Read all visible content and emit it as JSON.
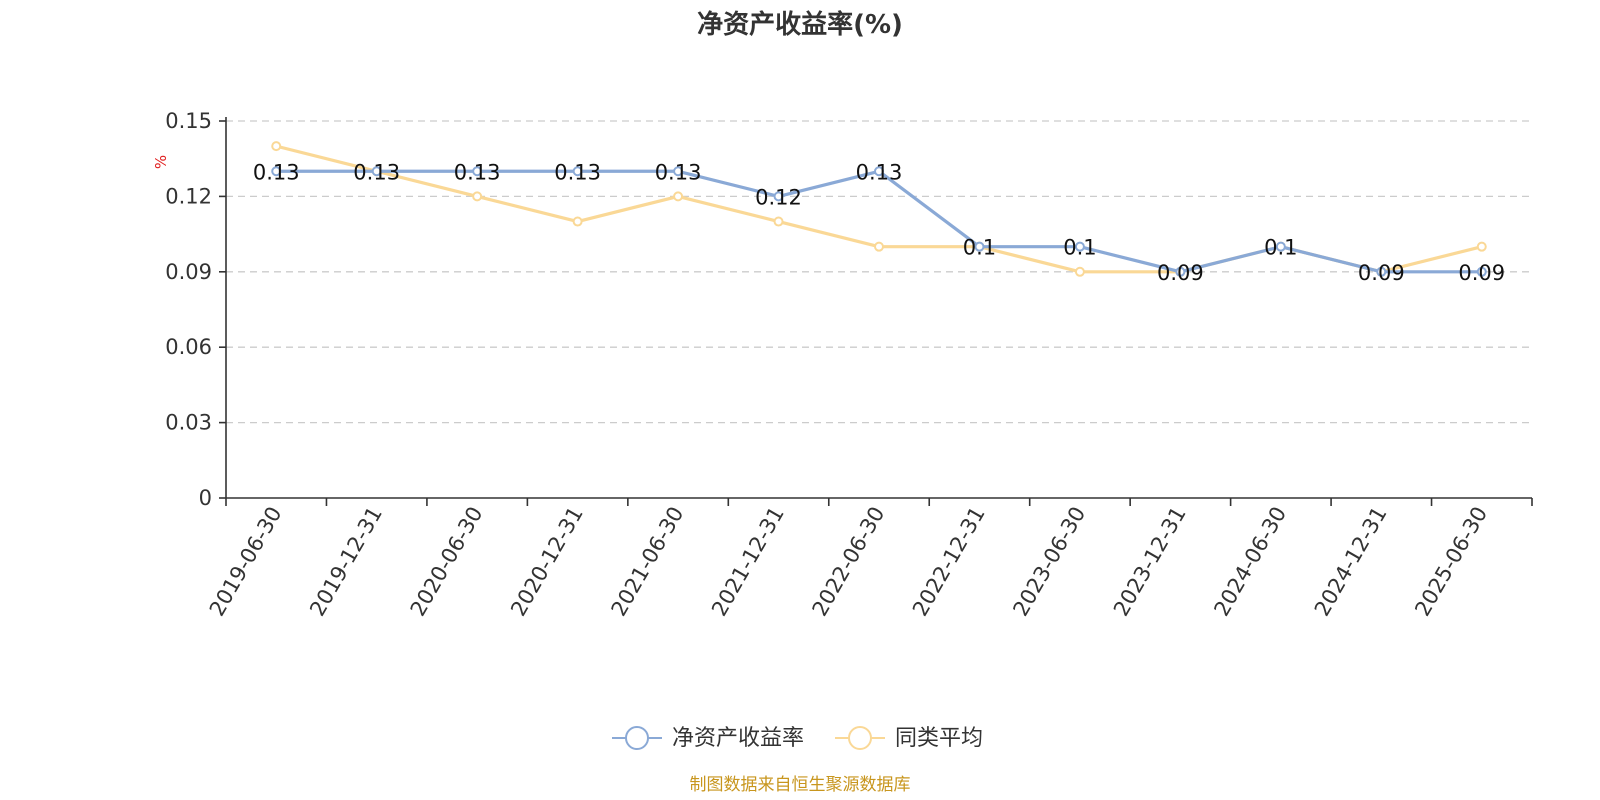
{
  "chart_data": {
    "type": "line",
    "title": "净资产收益率(%)",
    "ylabel": "%",
    "ylim": [
      0,
      0.15
    ],
    "yticks": [
      "0",
      "0.03",
      "0.06",
      "0.09",
      "0.12",
      "0.15"
    ],
    "categories": [
      "2019-06-30",
      "2019-12-31",
      "2020-06-30",
      "2020-12-31",
      "2021-06-30",
      "2021-12-31",
      "2022-06-30",
      "2022-12-31",
      "2023-06-30",
      "2023-12-31",
      "2024-06-30",
      "2024-12-31",
      "2025-06-30"
    ],
    "series": [
      {
        "name": "净资产收益率",
        "color": "#8aa9d6",
        "values": [
          0.13,
          0.13,
          0.13,
          0.13,
          0.13,
          0.12,
          0.13,
          0.1,
          0.1,
          0.09,
          0.1,
          0.09,
          0.09
        ],
        "labels": [
          "0.13",
          "0.13",
          "0.13",
          "0.13",
          "0.13",
          "0.12",
          "0.13",
          "0.1",
          "0.1",
          "0.09",
          "0.1",
          "0.09",
          "0.09"
        ]
      },
      {
        "name": "同类平均",
        "color": "#fad896",
        "values": [
          0.14,
          0.13,
          0.12,
          0.11,
          0.12,
          0.11,
          0.1,
          0.1,
          0.09,
          0.09,
          0.1,
          0.09,
          0.1
        ]
      }
    ],
    "grid": true,
    "legend": "bottom-center"
  },
  "footer": {
    "source": "制图数据来自恒生聚源数据库"
  }
}
